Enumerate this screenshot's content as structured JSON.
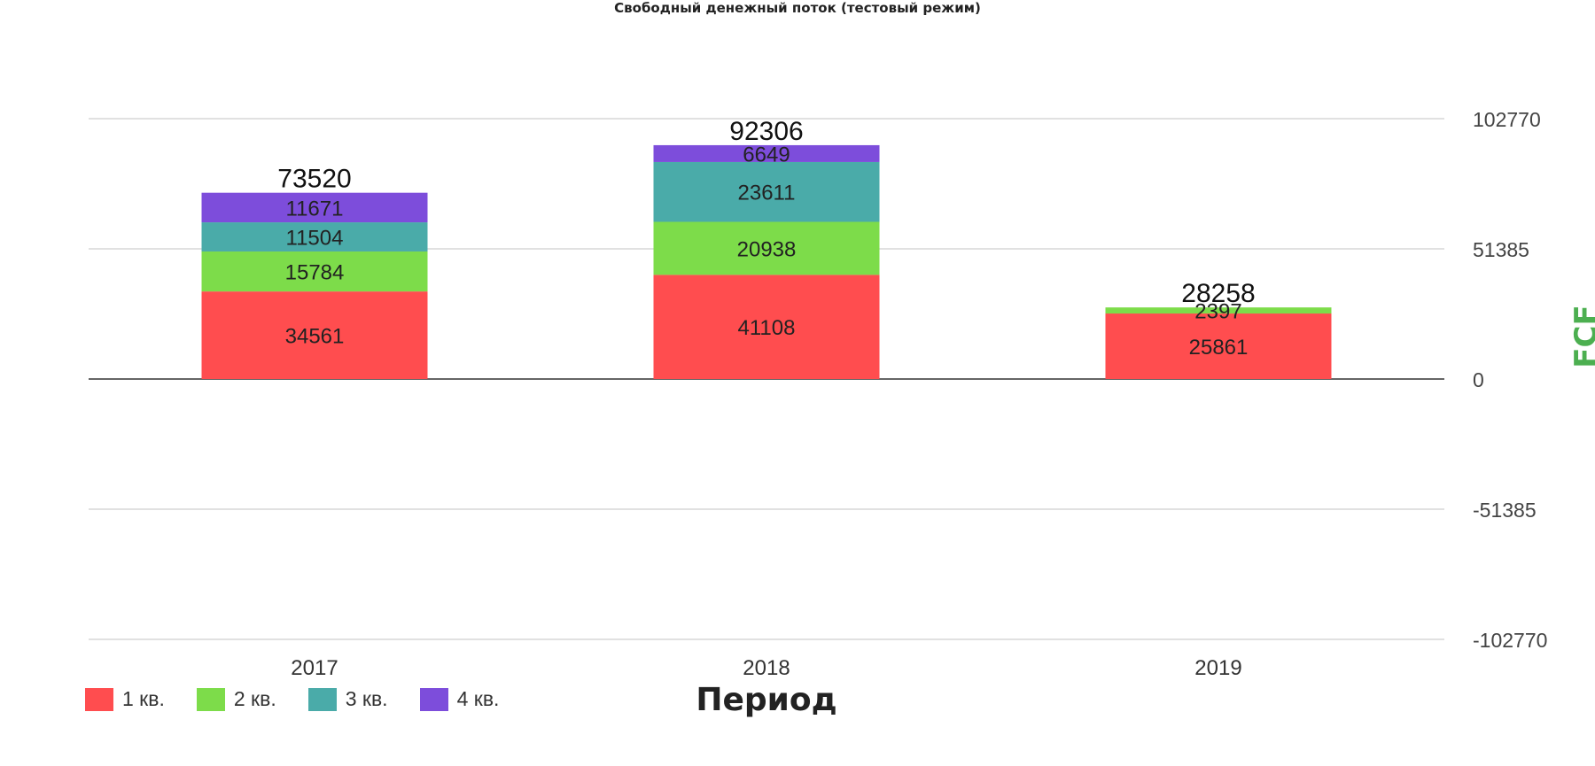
{
  "chart_data": {
    "type": "bar",
    "stacked": true,
    "title": "Свободный денежный поток (тестовый режим)",
    "xlabel": "Период",
    "ylabel": "FCF",
    "categories": [
      "2017",
      "2018",
      "2019"
    ],
    "series": [
      {
        "name": "1 кв.",
        "color": "#ff4d4f",
        "values": [
          34561,
          41108,
          25861
        ]
      },
      {
        "name": "2 кв.",
        "color": "#7ddc4a",
        "values": [
          15784,
          20938,
          2397
        ]
      },
      {
        "name": "3 кв.",
        "color": "#4aaba9",
        "values": [
          11504,
          23611,
          null
        ]
      },
      {
        "name": "4 кв.",
        "color": "#7d4ddb",
        "values": [
          11671,
          6649,
          null
        ]
      }
    ],
    "totals": [
      73520,
      92306,
      28258
    ],
    "ylim": [
      -102770,
      102770
    ],
    "yticks": [
      102770,
      51385,
      0,
      -51385,
      -102770
    ],
    "ytick_labels": [
      "102770",
      "51385",
      "0",
      "-51385",
      "-102770"
    ],
    "grid": true,
    "legend_position": "bottom-left",
    "ylabel_color": "#4caf50"
  }
}
